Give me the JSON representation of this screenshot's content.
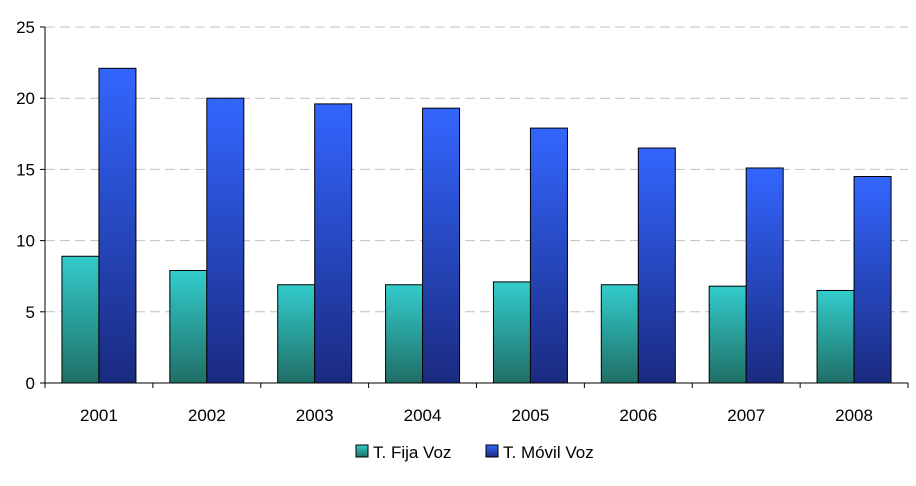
{
  "chart_data": {
    "type": "bar",
    "categories": [
      "2001",
      "2002",
      "2003",
      "2004",
      "2005",
      "2006",
      "2007",
      "2008"
    ],
    "series": [
      {
        "name": "T. Fija Voz",
        "values": [
          8.9,
          7.9,
          6.9,
          6.9,
          7.1,
          6.9,
          6.8,
          6.5
        ]
      },
      {
        "name": "T. Móvil Voz",
        "values": [
          22.1,
          20.0,
          19.6,
          19.3,
          17.9,
          16.5,
          15.1,
          14.5
        ]
      }
    ],
    "ylim": [
      0,
      25
    ],
    "yticks": [
      "0",
      "5",
      "10",
      "15",
      "20",
      "25"
    ],
    "grid": true,
    "legend_position": "bottom",
    "colors": {
      "fija_top": "#33cccc",
      "fija_bottom": "#1f6f66",
      "movil_top": "#3366ff",
      "movil_bottom": "#1a2a80",
      "grid": "#c0c0c0",
      "axis": "#000000"
    }
  }
}
